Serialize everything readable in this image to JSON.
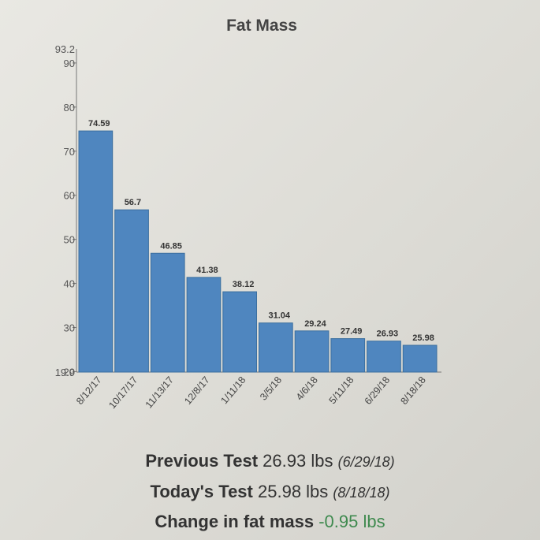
{
  "chart_data": {
    "type": "bar",
    "title": "Fat Mass",
    "xlabel": "",
    "ylabel": "",
    "categories": [
      "8/12/17",
      "10/17/17",
      "11/13/17",
      "12/8/17",
      "1/11/18",
      "3/5/18",
      "4/6/18",
      "5/11/18",
      "6/29/18",
      "8/18/18"
    ],
    "values": [
      74.59,
      56.7,
      46.85,
      41.38,
      38.12,
      31.04,
      29.24,
      27.49,
      26.93,
      25.98
    ],
    "value_labels": [
      "74.59",
      "56.7",
      "46.85",
      "41.38",
      "38.12",
      "31.04",
      "29.24",
      "27.49",
      "26.93",
      "25.98"
    ],
    "ylim": [
      19.9,
      93.2
    ],
    "y_ticks": [
      20,
      30,
      40,
      50,
      60,
      70,
      80,
      90
    ],
    "y_extra_labels": [
      "19.9",
      "93.2"
    ],
    "grid": false,
    "legend": "none",
    "bar_color": "#4f86bf",
    "bar_stroke": "#3b6f9f"
  },
  "summary": {
    "previous": {
      "label": "Previous Test",
      "value": "26.93 lbs",
      "date": "(6/29/18)"
    },
    "today": {
      "label": "Today's Test",
      "value": "25.98 lbs",
      "date": "(8/18/18)"
    },
    "change": {
      "label": "Change in fat mass",
      "value": "-0.95 lbs"
    }
  }
}
